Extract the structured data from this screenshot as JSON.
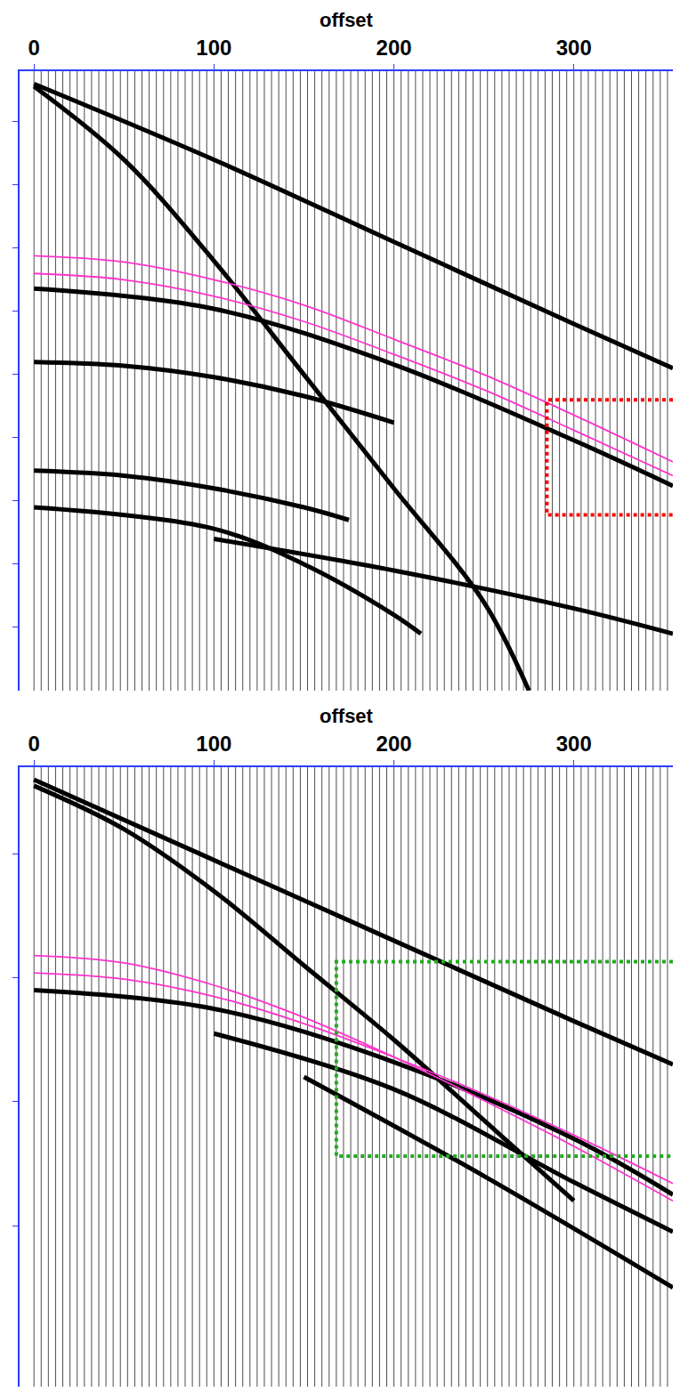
{
  "chart_data": [
    {
      "type": "line",
      "xlabel": "offset",
      "xlim": [
        -8,
        355
      ],
      "xticks": [
        0,
        100,
        200,
        300
      ],
      "ylim": [
        0,
        490
      ],
      "yticks": [
        40,
        90,
        140,
        190,
        240,
        290,
        340,
        390,
        440
      ],
      "tick_labels": "x",
      "grid": false,
      "trace_offsets": [
        0,
        4,
        8,
        12,
        16,
        20,
        24,
        28,
        32,
        36,
        40,
        44,
        48,
        52,
        56,
        60,
        64,
        68,
        72,
        76,
        80,
        84,
        88,
        92,
        96,
        100,
        104,
        108,
        112,
        116,
        120,
        124,
        128,
        132,
        136,
        140,
        144,
        148,
        152,
        156,
        160,
        164,
        168,
        172,
        176,
        180,
        184,
        188,
        192,
        196,
        200,
        204,
        208,
        212,
        216,
        220,
        224,
        228,
        232,
        236,
        240,
        244,
        248,
        252,
        256,
        260,
        264,
        268,
        272,
        276,
        280,
        284,
        288,
        292,
        296,
        300,
        304,
        308,
        312,
        316,
        320,
        324,
        328,
        332,
        336,
        340,
        344,
        348,
        352
      ],
      "series": [
        {
          "color": "#000000",
          "line_style": "solid",
          "x": [
            0,
            100,
            200,
            300,
            355
          ],
          "values": [
            10,
            70,
            135,
            200,
            235
          ]
        },
        {
          "color": "#000000",
          "line_style": "solid",
          "x": [
            0,
            50,
            100,
            150,
            200,
            250,
            275
          ],
          "values": [
            12,
            70,
            150,
            240,
            330,
            420,
            490
          ]
        },
        {
          "color": "#000000",
          "line_style": "solid",
          "x": [
            0,
            100,
            200,
            300,
            355
          ],
          "values": [
            172,
            188,
            232,
            292,
            328
          ]
        },
        {
          "color": "#000000",
          "line_style": "solid",
          "x": [
            0,
            50,
            100,
            150,
            200
          ],
          "values": [
            230,
            233,
            242,
            257,
            278
          ]
        },
        {
          "color": "#000000",
          "line_style": "solid",
          "x": [
            0,
            50,
            100,
            150,
            175
          ],
          "values": [
            316,
            320,
            330,
            345,
            355
          ]
        },
        {
          "color": "#000000",
          "line_style": "solid",
          "x": [
            0,
            100,
            150,
            200,
            215
          ],
          "values": [
            345,
            362,
            390,
            430,
            445
          ]
        },
        {
          "color": "#000000",
          "line_style": "solid",
          "x": [
            100,
            200,
            300,
            355
          ],
          "values": [
            370,
            395,
            425,
            445
          ]
        },
        {
          "color": "#ff33cc",
          "line_style": "solid",
          "x": [
            0,
            50,
            100,
            150,
            200,
            250,
            300,
            355
          ],
          "values": [
            146,
            151,
            165,
            185,
            212,
            240,
            272,
            309
          ]
        },
        {
          "color": "#ff33cc",
          "line_style": "solid",
          "x": [
            0,
            50,
            100,
            150,
            200,
            250,
            300,
            355
          ],
          "values": [
            160,
            165,
            178,
            198,
            224,
            252,
            284,
            320
          ]
        },
        {
          "color": "#ff0000",
          "line_style": "dot",
          "x": [
            355,
            285,
            285,
            355
          ],
          "values": [
            260,
            260,
            351,
            351
          ]
        }
      ]
    },
    {
      "type": "line",
      "xlabel": "offset",
      "xlim": [
        -8,
        355
      ],
      "xticks": [
        0,
        100,
        200,
        300
      ],
      "ylim": [
        0,
        500
      ],
      "yticks": [
        70,
        170,
        270,
        370
      ],
      "tick_labels": "x",
      "grid": false,
      "trace_offsets": [
        0,
        4,
        8,
        12,
        16,
        20,
        24,
        28,
        32,
        36,
        40,
        44,
        48,
        52,
        56,
        60,
        64,
        68,
        72,
        76,
        80,
        84,
        88,
        92,
        96,
        100,
        104,
        108,
        112,
        116,
        120,
        124,
        128,
        132,
        136,
        140,
        144,
        148,
        152,
        156,
        160,
        164,
        168,
        172,
        176,
        180,
        184,
        188,
        192,
        196,
        200,
        204,
        208,
        212,
        216,
        220,
        224,
        228,
        232,
        236,
        240,
        244,
        248,
        252,
        256,
        260,
        264,
        268,
        272,
        276,
        280,
        284,
        288,
        292,
        296,
        300,
        304,
        308,
        312,
        316,
        320,
        324,
        328,
        332,
        336,
        340,
        344,
        348,
        352
      ],
      "series": [
        {
          "color": "#000000",
          "line_style": "solid",
          "x": [
            0,
            100,
            200,
            300,
            355
          ],
          "values": [
            10,
            75,
            140,
            205,
            240
          ]
        },
        {
          "color": "#000000",
          "line_style": "solid",
          "x": [
            0,
            50,
            100,
            150,
            200,
            250,
            300
          ],
          "values": [
            15,
            50,
            100,
            160,
            220,
            285,
            350
          ]
        },
        {
          "color": "#000000",
          "line_style": "solid",
          "x": [
            0,
            100,
            200,
            300,
            355
          ],
          "values": [
            180,
            195,
            238,
            300,
            345
          ]
        },
        {
          "color": "#000000",
          "line_style": "solid",
          "x": [
            100,
            200,
            300,
            355
          ],
          "values": [
            215,
            260,
            335,
            375
          ]
        },
        {
          "color": "#000000",
          "line_style": "solid",
          "x": [
            150,
            250,
            355
          ],
          "values": [
            250,
            330,
            420
          ]
        },
        {
          "color": "#ff33cc",
          "line_style": "solid",
          "x": [
            0,
            50,
            100,
            150,
            200,
            250,
            300,
            355
          ],
          "values": [
            152,
            158,
            176,
            202,
            234,
            269,
            306,
            350
          ]
        },
        {
          "color": "#ff33cc",
          "line_style": "solid",
          "x": [
            0,
            50,
            100,
            150,
            200,
            250,
            300,
            355
          ],
          "values": [
            166,
            171,
            185,
            207,
            234,
            264,
            297,
            336
          ]
        },
        {
          "color": "#22aa22",
          "line_style": "dot",
          "x": [
            355,
            168,
            168,
            355
          ],
          "values": [
            157,
            157,
            314,
            314
          ]
        }
      ]
    }
  ]
}
